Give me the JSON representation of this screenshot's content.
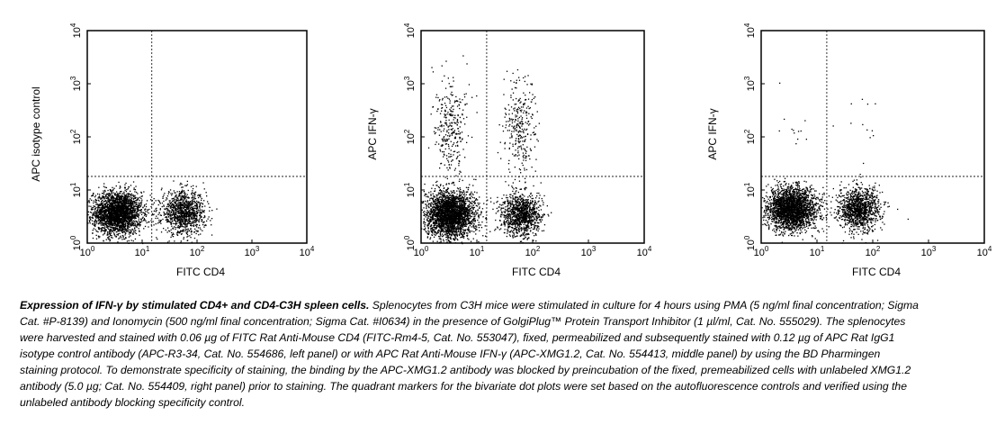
{
  "chart_data": [
    {
      "type": "scatter",
      "panel": "left",
      "xlabel": "FITC CD4",
      "ylabel": "APC isotype control",
      "xscale": "log",
      "yscale": "log",
      "xlim": [
        1,
        10000
      ],
      "ylim": [
        1,
        10000
      ],
      "xticks": [
        "10",
        "10",
        "10",
        "10",
        "10"
      ],
      "yticks": [
        "10",
        "10",
        "10",
        "10",
        "10"
      ],
      "tick_exponents": [
        "0",
        "1",
        "2",
        "3",
        "4"
      ],
      "quadrant_marker": {
        "x": 15,
        "y": 18
      },
      "populations": [
        {
          "x_center": 3.5,
          "y_center": 3.8,
          "x_spread": 0.22,
          "y_spread": 0.2,
          "count": 2600
        },
        {
          "x_center": 55,
          "y_center": 3.8,
          "x_spread": 0.2,
          "y_spread": 0.2,
          "count": 1100
        },
        {
          "x_center": 4,
          "y_center": 120,
          "x_spread": 0.0,
          "y_spread": 0.0,
          "count": 0
        },
        {
          "x_center": 60,
          "y_center": 120,
          "x_spread": 0.0,
          "y_spread": 0.0,
          "count": 0
        }
      ]
    },
    {
      "type": "scatter",
      "panel": "middle",
      "xlabel": "FITC CD4",
      "ylabel": "APC IFN-γ",
      "xscale": "log",
      "yscale": "log",
      "xlim": [
        1,
        10000
      ],
      "ylim": [
        1,
        10000
      ],
      "xticks": [
        "10",
        "10",
        "10",
        "10",
        "10"
      ],
      "yticks": [
        "10",
        "10",
        "10",
        "10",
        "10"
      ],
      "tick_exponents": [
        "0",
        "1",
        "2",
        "3",
        "4"
      ],
      "quadrant_marker": {
        "x": 15,
        "y": 18
      },
      "populations": [
        {
          "x_center": 3.3,
          "y_center": 3.5,
          "x_spread": 0.22,
          "y_spread": 0.22,
          "count": 2700
        },
        {
          "x_center": 60,
          "y_center": 3.5,
          "x_spread": 0.18,
          "y_spread": 0.2,
          "count": 1100
        },
        {
          "x_center": 3.3,
          "y_center": 150,
          "x_spread": 0.15,
          "y_spread": 0.45,
          "count": 300
        },
        {
          "x_center": 60,
          "y_center": 150,
          "x_spread": 0.15,
          "y_spread": 0.45,
          "count": 300
        }
      ]
    },
    {
      "type": "scatter",
      "panel": "right",
      "xlabel": "FITC CD4",
      "ylabel": "APC IFN-γ",
      "xscale": "log",
      "yscale": "log",
      "xlim": [
        1,
        10000
      ],
      "ylim": [
        1,
        10000
      ],
      "xticks": [
        "10",
        "10",
        "10",
        "10",
        "10"
      ],
      "yticks": [
        "10",
        "10",
        "10",
        "10",
        "10"
      ],
      "tick_exponents": [
        "0",
        "1",
        "2",
        "3",
        "4"
      ],
      "quadrant_marker": {
        "x": 15,
        "y": 18
      },
      "populations": [
        {
          "x_center": 3.5,
          "y_center": 4.5,
          "x_spread": 0.22,
          "y_spread": 0.2,
          "count": 2500
        },
        {
          "x_center": 55,
          "y_center": 4.5,
          "x_spread": 0.18,
          "y_spread": 0.2,
          "count": 1200
        },
        {
          "x_center": 3.5,
          "y_center": 150,
          "x_spread": 0.15,
          "y_spread": 0.3,
          "count": 12
        },
        {
          "x_center": 60,
          "y_center": 150,
          "x_spread": 0.15,
          "y_spread": 0.3,
          "count": 12
        }
      ]
    }
  ],
  "caption": {
    "title": "Expression of IFN-γ by stimulated CD4+ and CD4-C3H spleen cells.",
    "body": " Splenocytes from C3H mice were stimulated in culture for 4 hours using PMA (5 ng/ml final concentration; Sigma Cat. #P-8139) and Ionomycin (500 ng/ml final concentration; Sigma Cat. #I0634) in the presence of GolgiPlug™ Protein Transport Inhibitor (1 µl/ml, Cat. No. 555029). The splenocytes were harvested and stained with 0.06 µg of FITC Rat Anti-Mouse CD4 (FITC-Rm4-5, Cat. No. 553047), fixed, permeabilized and subsequently stained with 0.12 µg of APC Rat IgG1 isotype control antibody (APC-R3-34, Cat. No. 554686, left panel) or with APC Rat Anti-Mouse IFN-γ (APC-XMG1.2, Cat. No. 554413, middle panel) by using the BD Pharmingen staining protocol. To demonstrate specificity of staining, the binding by the APC-XMG1.2 antibody was blocked by preincubation of the fixed, premeabilized cells with unlabeled XMG1.2 antibody (5.0 µg; Cat. No. 554409, right panel) prior to staining. The quadrant markers for the bivariate dot plots were set based on the autofluorescence controls and verified using the unlabeled antibody blocking specificity control."
  }
}
